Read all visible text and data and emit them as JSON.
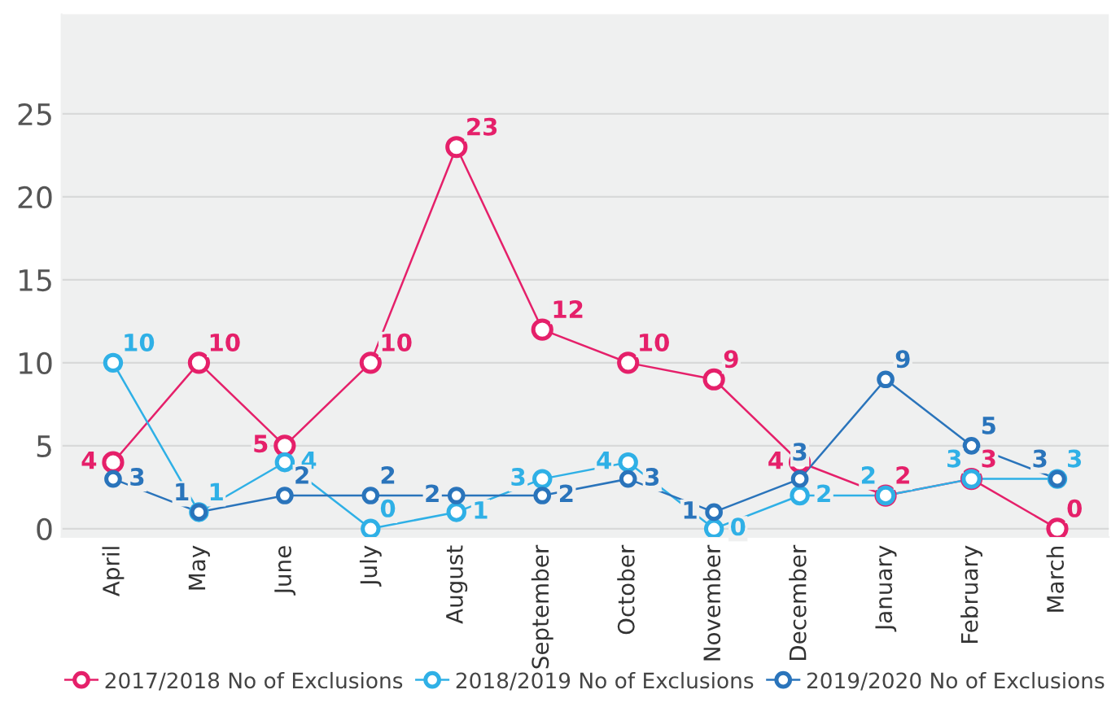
{
  "chart_data": {
    "type": "line",
    "categories": [
      "April",
      "May",
      "June",
      "July",
      "August",
      "September",
      "October",
      "November",
      "December",
      "January",
      "February",
      "March"
    ],
    "series": [
      {
        "name": "2017/2018 No of Exclusions",
        "color": "#e5206a",
        "values": [
          4,
          10,
          5,
          10,
          23,
          12,
          10,
          9,
          4,
          2,
          3,
          0
        ]
      },
      {
        "name": "2018/2019 No of Exclusions",
        "color": "#2fb0e6",
        "values": [
          10,
          1,
          4,
          0,
          1,
          3,
          4,
          0,
          2,
          2,
          3,
          3
        ]
      },
      {
        "name": "2019/2020 No of Exclusions",
        "color": "#2a74bb",
        "values": [
          3,
          1,
          2,
          2,
          2,
          2,
          3,
          1,
          3,
          9,
          5,
          3
        ]
      }
    ],
    "ylim": [
      -0.5,
      31
    ],
    "yticks": [
      0,
      5,
      10,
      15,
      20,
      25
    ],
    "grid": "y",
    "legend": "bottom",
    "marker": "circle",
    "line_style": "solid",
    "data_labels": true
  }
}
